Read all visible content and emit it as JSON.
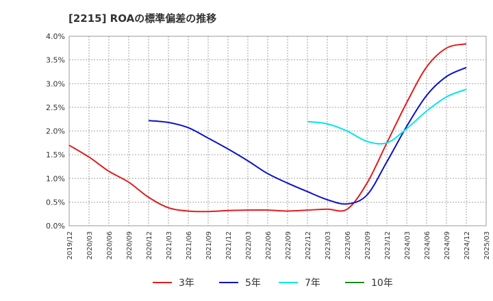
{
  "chart_data": {
    "type": "line",
    "title": "[2215]  ROAの標準偏差の推移",
    "xlabel": "",
    "ylabel": "",
    "ylim": [
      0,
      4.0
    ],
    "y_ticks": [
      "0.0%",
      "0.5%",
      "1.0%",
      "1.5%",
      "2.0%",
      "2.5%",
      "3.0%",
      "3.5%",
      "4.0%"
    ],
    "x_ticks": [
      "2019/12",
      "2020/03",
      "2020/06",
      "2020/09",
      "2020/12",
      "2021/03",
      "2021/06",
      "2021/09",
      "2021/12",
      "2022/03",
      "2022/06",
      "2022/09",
      "2022/12",
      "2023/03",
      "2023/06",
      "2023/09",
      "2023/12",
      "2024/03",
      "2024/06",
      "2024/09",
      "2024/12",
      "2025/03"
    ],
    "grid": true,
    "legend_position": "bottom",
    "series": [
      {
        "name": "3年",
        "color": "#e31a1c",
        "points": [
          [
            "2019/12",
            1.7
          ],
          [
            "2020/03",
            1.45
          ],
          [
            "2020/06",
            1.15
          ],
          [
            "2020/09",
            0.92
          ],
          [
            "2020/12",
            0.6
          ],
          [
            "2021/03",
            0.38
          ],
          [
            "2021/06",
            0.31
          ],
          [
            "2021/09",
            0.3
          ],
          [
            "2021/12",
            0.32
          ],
          [
            "2022/03",
            0.33
          ],
          [
            "2022/06",
            0.33
          ],
          [
            "2022/09",
            0.31
          ],
          [
            "2022/12",
            0.33
          ],
          [
            "2023/03",
            0.35
          ],
          [
            "2023/06",
            0.35
          ],
          [
            "2023/09",
            0.9
          ],
          [
            "2023/12",
            1.75
          ],
          [
            "2024/03",
            2.6
          ],
          [
            "2024/06",
            3.35
          ],
          [
            "2024/09",
            3.75
          ],
          [
            "2024/12",
            3.84
          ]
        ]
      },
      {
        "name": "5年",
        "color": "#0a10c8",
        "points": [
          [
            "2020/12",
            2.22
          ],
          [
            "2021/03",
            2.18
          ],
          [
            "2021/06",
            2.07
          ],
          [
            "2021/09",
            1.85
          ],
          [
            "2021/12",
            1.62
          ],
          [
            "2022/03",
            1.37
          ],
          [
            "2022/06",
            1.1
          ],
          [
            "2022/09",
            0.9
          ],
          [
            "2022/12",
            0.72
          ],
          [
            "2023/03",
            0.55
          ],
          [
            "2023/06",
            0.46
          ],
          [
            "2023/09",
            0.65
          ],
          [
            "2023/12",
            1.35
          ],
          [
            "2024/03",
            2.1
          ],
          [
            "2024/06",
            2.75
          ],
          [
            "2024/09",
            3.15
          ],
          [
            "2024/12",
            3.34
          ]
        ]
      },
      {
        "name": "7年",
        "color": "#00e5ee",
        "points": [
          [
            "2022/12",
            2.2
          ],
          [
            "2023/03",
            2.15
          ],
          [
            "2023/06",
            2.0
          ],
          [
            "2023/09",
            1.78
          ],
          [
            "2023/12",
            1.75
          ],
          [
            "2024/03",
            2.05
          ],
          [
            "2024/06",
            2.42
          ],
          [
            "2024/09",
            2.72
          ],
          [
            "2024/12",
            2.88
          ]
        ]
      },
      {
        "name": "10年",
        "color": "#1a8a1a",
        "points": []
      }
    ]
  }
}
